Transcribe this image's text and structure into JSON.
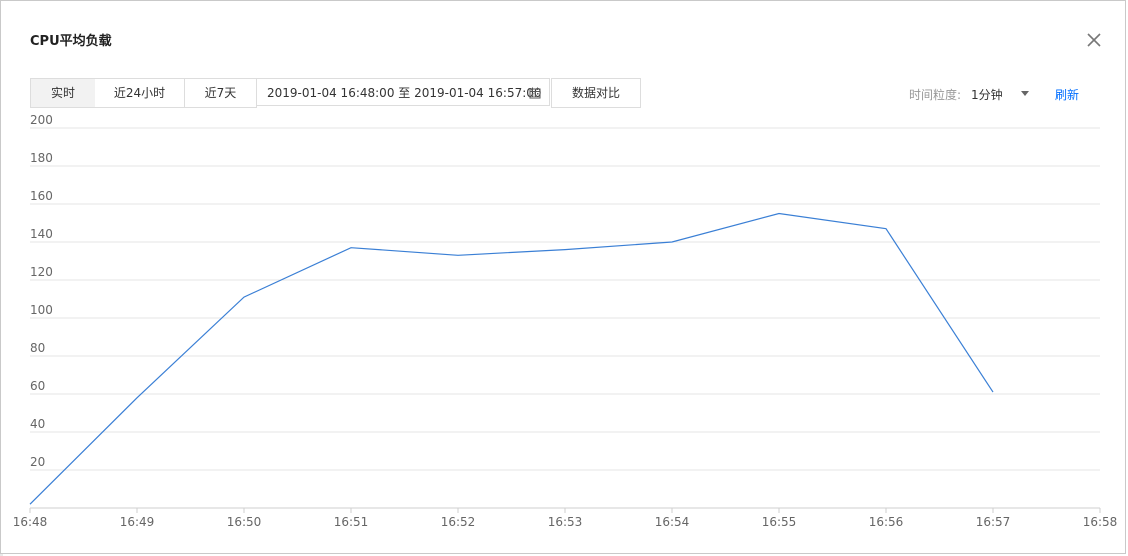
{
  "dialog": {
    "title": "CPU平均负载",
    "close_icon": "close-icon"
  },
  "toolbar": {
    "tabs": [
      {
        "label": "实时",
        "active": true
      },
      {
        "label": "近24小时",
        "active": false
      },
      {
        "label": "近7天",
        "active": false
      }
    ],
    "date_range": "2019-01-04 16:48:00 至 2019-01-04 16:57:00",
    "calendar_icon": "calendar-icon",
    "compare_label": "数据对比",
    "granularity_label": "时间粒度:",
    "granularity_value": "1分钟",
    "refresh_label": "刷新"
  },
  "colors": {
    "line": "#3a7fd5",
    "grid": "#e5e5e5",
    "link": "#006eff"
  },
  "chart_data": {
    "type": "line",
    "x": [
      "16:48",
      "16:49",
      "16:50",
      "16:51",
      "16:52",
      "16:53",
      "16:54",
      "16:55",
      "16:56",
      "16:57"
    ],
    "x_ticks": [
      "16:48",
      "16:49",
      "16:50",
      "16:51",
      "16:52",
      "16:53",
      "16:54",
      "16:55",
      "16:56",
      "16:57",
      "16:58"
    ],
    "values": [
      2,
      58,
      111,
      137,
      133,
      136,
      140,
      155,
      147,
      61
    ],
    "y_ticks": [
      "20",
      "40",
      "60",
      "80",
      "100",
      "120",
      "140",
      "160",
      "180",
      "200"
    ],
    "ylim": [
      0,
      200
    ],
    "grid": true
  }
}
